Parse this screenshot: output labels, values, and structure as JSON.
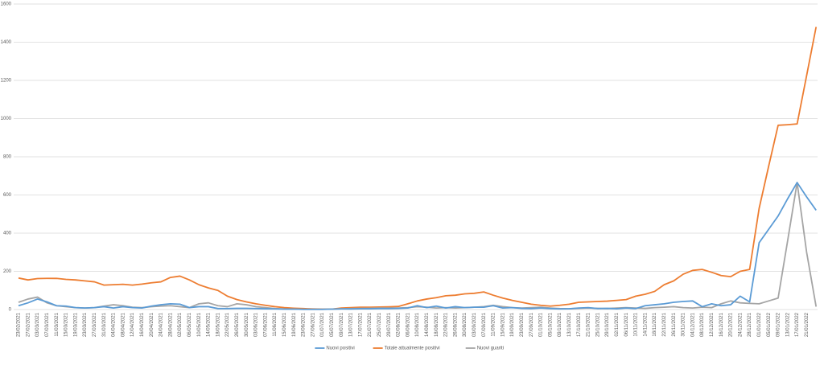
{
  "chart_data": {
    "type": "line",
    "categories": [
      "23/02/2021",
      "27/02/2021",
      "03/03/2021",
      "07/03/2021",
      "11/03/2021",
      "15/03/2021",
      "19/03/2021",
      "23/03/2021",
      "27/03/2021",
      "31/03/2021",
      "04/04/2021",
      "08/04/2021",
      "12/04/2021",
      "16/04/2021",
      "20/04/2021",
      "24/04/2021",
      "28/04/2021",
      "02/05/2021",
      "06/05/2021",
      "10/05/2021",
      "14/05/2021",
      "18/05/2021",
      "22/05/2021",
      "26/05/2021",
      "30/05/2021",
      "03/06/2021",
      "07/06/2021",
      "11/06/2021",
      "15/06/2021",
      "19/06/2021",
      "23/06/2021",
      "27/06/2021",
      "01/07/2021",
      "05/07/2021",
      "09/07/2021",
      "13/07/2021",
      "17/07/2021",
      "21/07/2021",
      "25/07/2021",
      "29/07/2021",
      "02/08/2021",
      "06/08/2021",
      "10/08/2021",
      "14/08/2021",
      "18/08/2021",
      "22/08/2021",
      "26/08/2021",
      "30/08/2021",
      "03/09/2021",
      "07/09/2021",
      "11/09/2021",
      "15/09/2021",
      "19/09/2021",
      "23/09/2021",
      "27/09/2021",
      "01/10/2021",
      "05/10/2021",
      "09/10/2021",
      "13/10/2021",
      "17/10/2021",
      "21/10/2021",
      "25/10/2021",
      "29/10/2021",
      "02/11/2021",
      "06/11/2021",
      "10/11/2021",
      "14/11/2021",
      "18/11/2021",
      "22/11/2021",
      "26/11/2021",
      "30/11/2021",
      "04/12/2021",
      "08/12/2021",
      "12/12/2021",
      "16/12/2021",
      "20/12/2021",
      "24/12/2021",
      "28/12/2021",
      "01/01/2022",
      "05/01/2022",
      "09/01/2022",
      "13/01/2022",
      "17/01/2022",
      "21/01/2022",
      null
    ],
    "series": [
      {
        "name": "Nuovi positivi",
        "color": "#5b9bd5",
        "values": [
          20,
          35,
          55,
          40,
          20,
          18,
          10,
          8,
          10,
          15,
          8,
          15,
          10,
          8,
          18,
          25,
          30,
          28,
          10,
          15,
          15,
          5,
          5,
          6,
          6,
          5,
          4,
          3,
          2,
          2,
          1,
          1,
          1,
          2,
          3,
          3,
          4,
          4,
          5,
          5,
          6,
          8,
          20,
          10,
          18,
          8,
          15,
          10,
          12,
          12,
          20,
          8,
          10,
          6,
          5,
          8,
          5,
          3,
          4,
          8,
          10,
          5,
          6,
          4,
          8,
          5,
          20,
          25,
          30,
          38,
          42,
          45,
          15,
          30,
          20,
          25,
          70,
          40,
          350,
          420,
          490,
          580,
          665,
          590,
          520
        ]
      },
      {
        "name": "Totale attualmente positivi",
        "color": "#ed7d31",
        "values": [
          165,
          155,
          162,
          163,
          163,
          158,
          155,
          150,
          145,
          128,
          130,
          132,
          128,
          133,
          140,
          145,
          168,
          175,
          155,
          130,
          113,
          100,
          70,
          52,
          40,
          30,
          22,
          15,
          10,
          7,
          5,
          3,
          2,
          2,
          8,
          10,
          12,
          12,
          13,
          14,
          16,
          30,
          45,
          55,
          62,
          72,
          75,
          82,
          85,
          92,
          75,
          60,
          48,
          38,
          28,
          22,
          18,
          22,
          28,
          38,
          40,
          42,
          44,
          48,
          52,
          70,
          80,
          95,
          130,
          150,
          185,
          205,
          210,
          195,
          178,
          172,
          200,
          210,
          530,
          750,
          965,
          968,
          972,
          1225,
          1480
        ]
      },
      {
        "name": "Nuovi guariti",
        "color": "#a5a5a5",
        "values": [
          38,
          55,
          65,
          35,
          20,
          15,
          10,
          8,
          10,
          18,
          25,
          20,
          12,
          10,
          15,
          18,
          20,
          15,
          10,
          30,
          35,
          20,
          15,
          30,
          25,
          15,
          10,
          5,
          3,
          2,
          1,
          1,
          1,
          2,
          4,
          5,
          6,
          7,
          8,
          8,
          8,
          10,
          15,
          12,
          8,
          10,
          8,
          10,
          12,
          15,
          22,
          15,
          10,
          8,
          10,
          12,
          8,
          5,
          4,
          6,
          8,
          6,
          5,
          8,
          10,
          8,
          6,
          10,
          12,
          15,
          10,
          8,
          12,
          10,
          30,
          45,
          35,
          32,
          30,
          45,
          60,
          360,
          665,
          300,
          15
        ]
      }
    ],
    "ylim": [
      0,
      1600
    ],
    "yticks": [
      0,
      200,
      400,
      600,
      800,
      1000,
      1200,
      1400,
      1600
    ],
    "grid": true,
    "legend": "bottom"
  }
}
